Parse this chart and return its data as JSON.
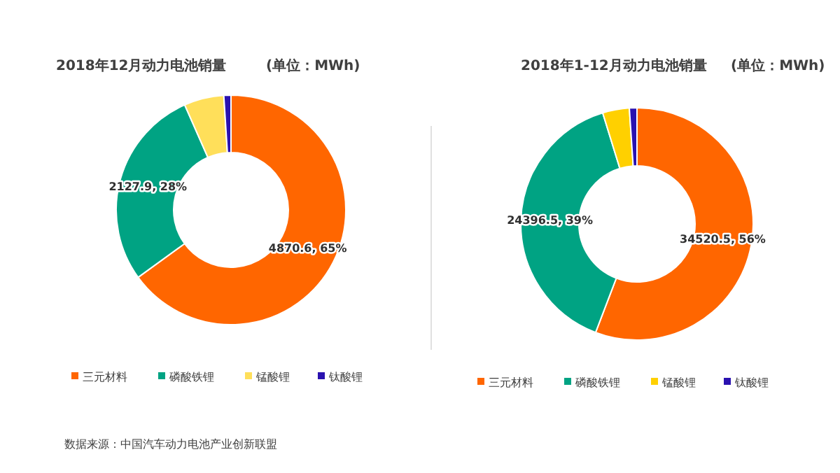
{
  "chart_data": [
    {
      "type": "donut",
      "title": "2018年12月动力电池销量",
      "subtitle": "(单位：MWh)",
      "categories": [
        "三元材料",
        "磷酸铁锂",
        "锰酸锂",
        "钛酸锂"
      ],
      "values": [
        4870.6,
        2127.9,
        420,
        75
      ],
      "colors": [
        "#ff6600",
        "#00a383",
        "#ffdf5a",
        "#2a12b0"
      ],
      "value_labels": [
        "4870.6, 65%",
        "2127.9, 28%",
        null,
        null
      ],
      "legend": "bottom",
      "annotations": [
        "数据来源：中国汽车动力电池产业创新联盟"
      ]
    },
    {
      "type": "donut",
      "title": "2018年1-12月动力电池销量",
      "subtitle": "(单位：MWh)",
      "categories": [
        "三元材料",
        "磷酸铁锂",
        "锰酸锂",
        "钛酸锂"
      ],
      "values": [
        34520.5,
        24396.5,
        2300,
        650
      ],
      "colors": [
        "#ff6600",
        "#00a383",
        "#ffd000",
        "#2a12b0"
      ],
      "value_labels": [
        "34520.5, 56%",
        "24396.5, 39%",
        null,
        null
      ],
      "legend": "bottom"
    }
  ]
}
